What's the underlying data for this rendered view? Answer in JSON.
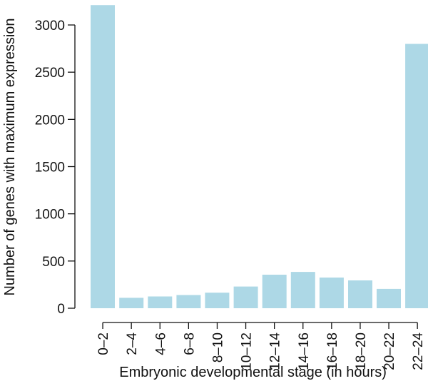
{
  "chart_data": {
    "type": "bar",
    "title": "",
    "xlabel": "Embryonic developmental stage (in hours)",
    "ylabel": "Number of genes with maximum expression",
    "categories": [
      "0–2",
      "2–4",
      "4–6",
      "6–8",
      "8–10",
      "10–12",
      "12–14",
      "14–16",
      "16–18",
      "18–20",
      "20–22",
      "22–24"
    ],
    "values": [
      3210,
      110,
      125,
      140,
      165,
      230,
      355,
      385,
      325,
      295,
      205,
      2800
    ],
    "ylim": [
      0,
      3250
    ],
    "yticks": [
      0,
      500,
      1000,
      1500,
      2000,
      2500,
      3000
    ],
    "bar_color": "#ADD8E6",
    "grid": false,
    "legend": "none"
  }
}
